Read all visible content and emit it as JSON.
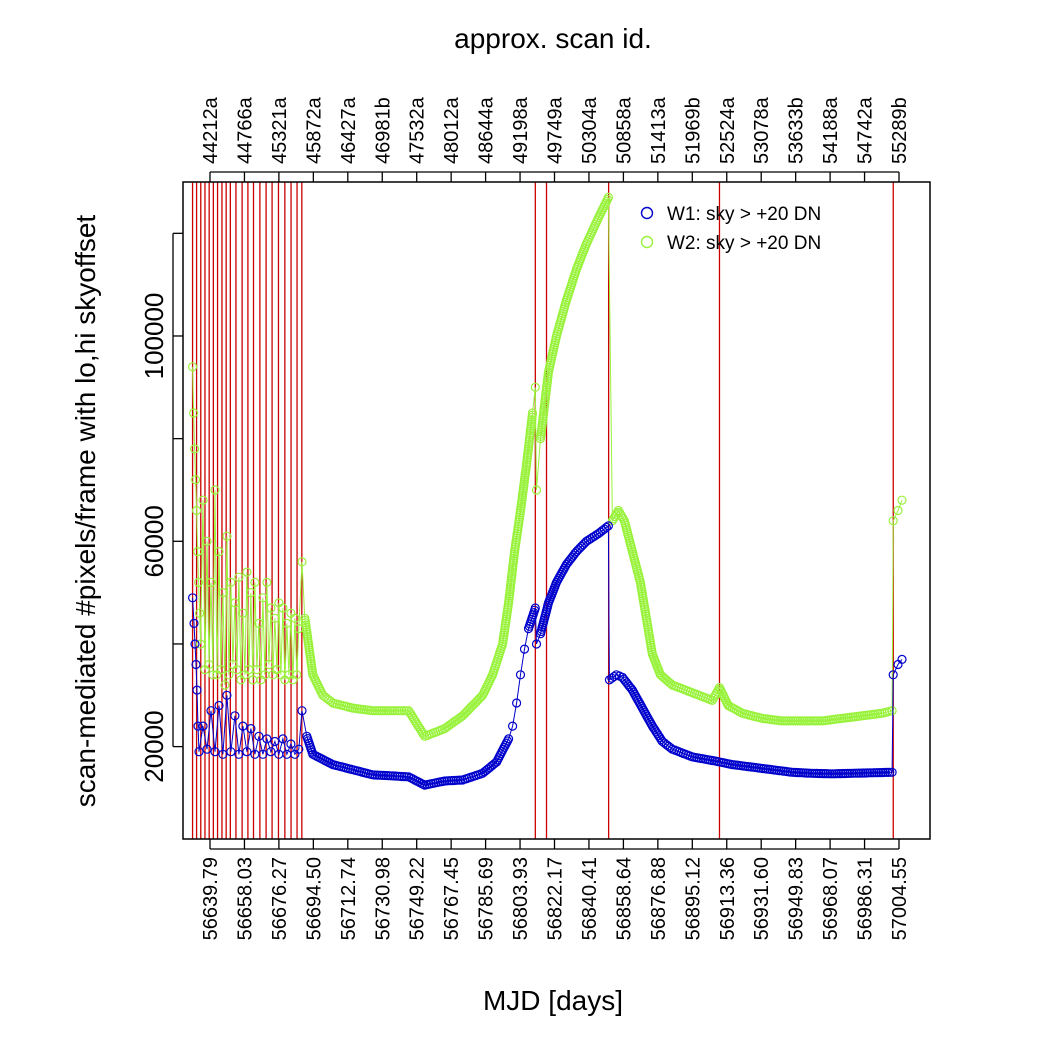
{
  "chart_data": {
    "type": "scatter",
    "title": "approx. scan id.",
    "xlabel": "MJD [days]",
    "ylabel": "scan-mediated #pixels/frame with lo,hi skyoffset",
    "xlim": [
      56635.0,
      57009.0
    ],
    "ylim": [
      2000,
      130000
    ],
    "bottom_ticks": [
      "56639.79",
      "56658.03",
      "56676.27",
      "56694.50",
      "56712.74",
      "56730.98",
      "56749.22",
      "56767.45",
      "56785.69",
      "56803.93",
      "56822.17",
      "56840.41",
      "56858.64",
      "56876.88",
      "56895.12",
      "56913.36",
      "56931.60",
      "56949.83",
      "56968.07",
      "56986.31",
      "57004.55"
    ],
    "top_ticks": [
      "44212a",
      "44766a",
      "45321a",
      "45872a",
      "46427a",
      "46981b",
      "47532a",
      "48012a",
      "48644a",
      "49198a",
      "49749a",
      "50304a",
      "50858a",
      "51413a",
      "51969b",
      "52524a",
      "53078a",
      "53633b",
      "54188a",
      "54742a",
      "55289b"
    ],
    "y_ticks": [
      20000,
      60000,
      100000
    ],
    "y_tick_labels": [
      "20000",
      "60000",
      "100000"
    ],
    "y_minor_ticks": [
      40000,
      80000,
      120000
    ],
    "grid": false,
    "legend_position": "top-right",
    "series": [
      {
        "name": "W1: sky > +20 DN",
        "color": "#0000cc"
      },
      {
        "name": "W2: sky > +20 DN",
        "color": "#99f23c"
      }
    ],
    "vertical_lines": [
      56639.79,
      56641.8,
      56643.9,
      56646.0,
      56648.1,
      56650.2,
      56652.3,
      56654.5,
      56656.6,
      56658.7,
      56661.5,
      56664.6,
      56667.5,
      56670.3,
      56673.5,
      56676.6,
      56679.6,
      56682.8,
      56686.0,
      56689.1,
      56692.1,
      56694.5,
      56811.4,
      56817.0,
      56848.1,
      56903.6,
      56990.6
    ],
    "vline_color": "#cc0000",
    "points_w1": [
      [
        56639.8,
        49000
      ],
      [
        56640.5,
        44000
      ],
      [
        56641.0,
        40000
      ],
      [
        56641.5,
        36000
      ],
      [
        56642.0,
        31000
      ],
      [
        56642.5,
        24000
      ],
      [
        56643.0,
        19000
      ],
      [
        56645,
        24000
      ],
      [
        56647,
        19500
      ],
      [
        56649,
        27000
      ],
      [
        56651,
        19000
      ],
      [
        56653,
        28000
      ],
      [
        56655,
        18500
      ],
      [
        56657,
        30000
      ],
      [
        56659,
        19000
      ],
      [
        56661,
        26000
      ],
      [
        56663,
        18500
      ],
      [
        56665,
        24000
      ],
      [
        56667,
        19000
      ],
      [
        56669,
        23500
      ],
      [
        56671,
        18500
      ],
      [
        56673,
        22000
      ],
      [
        56675,
        18500
      ],
      [
        56677,
        21500
      ],
      [
        56679,
        19000
      ],
      [
        56681,
        21000
      ],
      [
        56683,
        18500
      ],
      [
        56685,
        21500
      ],
      [
        56687,
        18500
      ],
      [
        56689,
        20500
      ],
      [
        56691,
        18500
      ],
      [
        56693,
        19500
      ],
      [
        56694.6,
        27000
      ],
      [
        56697,
        22000
      ],
      [
        56700,
        18500
      ],
      [
        56710,
        16500
      ],
      [
        56720,
        15500
      ],
      [
        56730,
        14500
      ],
      [
        56740,
        14300
      ],
      [
        56748,
        14100
      ],
      [
        56756,
        12500
      ],
      [
        56766,
        13300
      ],
      [
        56775,
        13500
      ],
      [
        56785,
        14800
      ],
      [
        56792,
        17000
      ],
      [
        56798,
        21500
      ],
      [
        56800,
        24000
      ],
      [
        56802,
        28500
      ],
      [
        56804,
        34000
      ],
      [
        56806,
        39000
      ],
      [
        56808,
        43000
      ],
      [
        56811.4,
        47000
      ],
      [
        56812,
        40000
      ],
      [
        56814,
        42000
      ],
      [
        56818,
        48000
      ],
      [
        56822,
        52000
      ],
      [
        56827,
        55500
      ],
      [
        56832,
        58000
      ],
      [
        56837,
        60000
      ],
      [
        56843,
        61500
      ],
      [
        56848,
        63000
      ],
      [
        56848.5,
        33000
      ],
      [
        56852,
        34000
      ],
      [
        56855,
        33500
      ],
      [
        56860,
        31000
      ],
      [
        56865,
        27500
      ],
      [
        56870,
        24000
      ],
      [
        56875,
        21000
      ],
      [
        56880,
        19500
      ],
      [
        56890,
        18000
      ],
      [
        56900,
        17300
      ],
      [
        56910,
        16500
      ],
      [
        56920,
        16000
      ],
      [
        56930,
        15500
      ],
      [
        56940,
        15000
      ],
      [
        56950,
        14800
      ],
      [
        56960,
        14700
      ],
      [
        56970,
        14800
      ],
      [
        56980,
        14900
      ],
      [
        56990,
        15000
      ],
      [
        56990.6,
        34000
      ],
      [
        56993,
        36000
      ],
      [
        56995,
        37000
      ]
    ],
    "points_w2": [
      [
        56639.8,
        94000
      ],
      [
        56640.3,
        85000
      ],
      [
        56640.8,
        78000
      ],
      [
        56641.3,
        72000
      ],
      [
        56641.8,
        66000
      ],
      [
        56642.3,
        58000
      ],
      [
        56642.8,
        52000
      ],
      [
        56643.3,
        46000
      ],
      [
        56643.8,
        40000
      ],
      [
        56645,
        68000
      ],
      [
        56646,
        35000
      ],
      [
        56647,
        60000
      ],
      [
        56648,
        36000
      ],
      [
        56649,
        52000
      ],
      [
        56650,
        34000
      ],
      [
        56651,
        70000
      ],
      [
        56652,
        34000
      ],
      [
        56653,
        58000
      ],
      [
        56654,
        35000
      ],
      [
        56655,
        50000
      ],
      [
        56656,
        32000
      ],
      [
        56657,
        61000
      ],
      [
        56658,
        34000
      ],
      [
        56659,
        52000
      ],
      [
        56660,
        36000
      ],
      [
        56661,
        48000
      ],
      [
        56662,
        35000
      ],
      [
        56663,
        53000
      ],
      [
        56664,
        33000
      ],
      [
        56665,
        46000
      ],
      [
        56666,
        34000
      ],
      [
        56667,
        54000
      ],
      [
        56668,
        35000
      ],
      [
        56669,
        50000
      ],
      [
        56670,
        33000
      ],
      [
        56671,
        52000
      ],
      [
        56672,
        35000
      ],
      [
        56673,
        44000
      ],
      [
        56674,
        33000
      ],
      [
        56675,
        49000
      ],
      [
        56676,
        34000
      ],
      [
        56677,
        52000
      ],
      [
        56678,
        36000
      ],
      [
        56679,
        47000
      ],
      [
        56680,
        34000
      ],
      [
        56681,
        45000
      ],
      [
        56682,
        35000
      ],
      [
        56683,
        48000
      ],
      [
        56684,
        34000
      ],
      [
        56685,
        47000
      ],
      [
        56686,
        33000
      ],
      [
        56687,
        44000
      ],
      [
        56688,
        34000
      ],
      [
        56689,
        46000
      ],
      [
        56690,
        33000
      ],
      [
        56691,
        45000
      ],
      [
        56692,
        34000
      ],
      [
        56693,
        43000
      ],
      [
        56694.6,
        56000
      ],
      [
        56696,
        45000
      ],
      [
        56700,
        34000
      ],
      [
        56705,
        30000
      ],
      [
        56710,
        28500
      ],
      [
        56720,
        27500
      ],
      [
        56730,
        27000
      ],
      [
        56740,
        27000
      ],
      [
        56748,
        27000
      ],
      [
        56756,
        22000
      ],
      [
        56766,
        23500
      ],
      [
        56775,
        26000
      ],
      [
        56785,
        30000
      ],
      [
        56790,
        34000
      ],
      [
        56795,
        40000
      ],
      [
        56798,
        48000
      ],
      [
        56801,
        58000
      ],
      [
        56804,
        66000
      ],
      [
        56807,
        75000
      ],
      [
        56810,
        85000
      ],
      [
        56811.4,
        90000
      ],
      [
        56812,
        70000
      ],
      [
        56814,
        80000
      ],
      [
        56818,
        93000
      ],
      [
        56822,
        100000
      ],
      [
        56827,
        107000
      ],
      [
        56832,
        113000
      ],
      [
        56837,
        118000
      ],
      [
        56843,
        123000
      ],
      [
        56848,
        127000
      ],
      [
        56850,
        64000
      ],
      [
        56853,
        66000
      ],
      [
        56856,
        64000
      ],
      [
        56860,
        58000
      ],
      [
        56864,
        52000
      ],
      [
        56867,
        45000
      ],
      [
        56870,
        38000
      ],
      [
        56874,
        34000
      ],
      [
        56880,
        32000
      ],
      [
        56890,
        30500
      ],
      [
        56900,
        29000
      ],
      [
        56903.6,
        31500
      ],
      [
        56908,
        28000
      ],
      [
        56915,
        26500
      ],
      [
        56925,
        25500
      ],
      [
        56935,
        25000
      ],
      [
        56945,
        25000
      ],
      [
        56955,
        25000
      ],
      [
        56965,
        25500
      ],
      [
        56975,
        26000
      ],
      [
        56985,
        26500
      ],
      [
        56990,
        27000
      ],
      [
        56990.6,
        64000
      ],
      [
        56993,
        66000
      ],
      [
        56995,
        68000
      ]
    ]
  }
}
